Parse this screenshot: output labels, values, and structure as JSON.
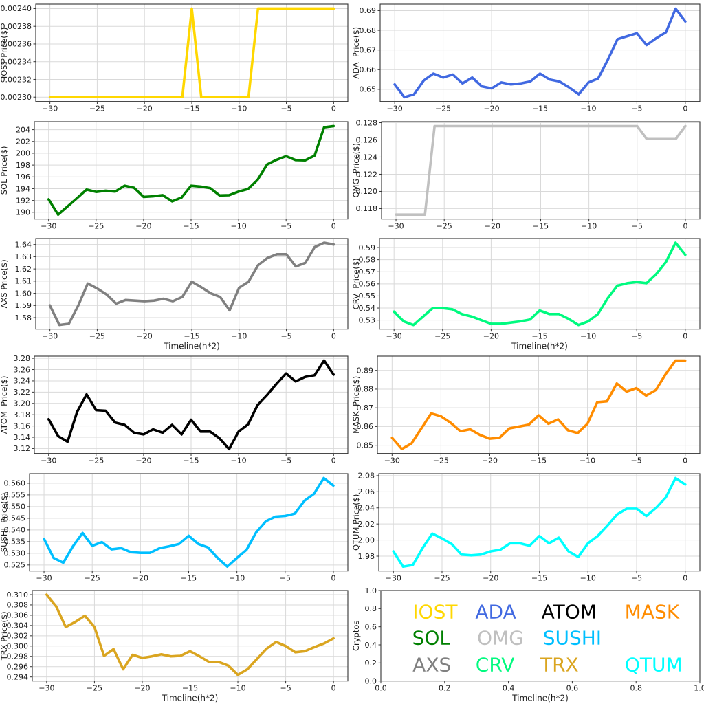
{
  "figure": {
    "background": "#ffffff",
    "grid_color": "#d9d9d9",
    "spine_color": "#333333",
    "tick_color": "#333333",
    "text_color": "#1a1a1a",
    "columns": 2,
    "rows": 6
  },
  "chart_data": [
    {
      "type": "line",
      "name": "IOST",
      "ylabel": "IOST Price($)",
      "xlabel": null,
      "color": "#FFD700",
      "x_start": -30,
      "x_step": 1,
      "xlim": [
        -31.5,
        1.5
      ],
      "ylim": [
        0.002295,
        0.002405
      ],
      "x_ticks": [
        -30,
        -25,
        -20,
        -15,
        -10,
        -5,
        0
      ],
      "x_tick_labels": [
        "−30",
        "−25",
        "−20",
        "−15",
        "−10",
        "−5",
        "0"
      ],
      "y_ticks": [
        0.0023,
        0.00232,
        0.00234,
        0.00236,
        0.00238,
        0.0024
      ],
      "y_tick_labels": [
        "0.00230",
        "0.00232",
        "0.00234",
        "0.00236",
        "0.00238",
        "0.00240"
      ],
      "values": [
        0.0023,
        0.0023,
        0.0023,
        0.0023,
        0.0023,
        0.0023,
        0.0023,
        0.0023,
        0.0023,
        0.0023,
        0.0023,
        0.0023,
        0.0023,
        0.0023,
        0.0023,
        0.0024,
        0.0023,
        0.0023,
        0.0023,
        0.0023,
        0.0023,
        0.0023,
        0.0024,
        0.0024,
        0.0024,
        0.0024,
        0.0024,
        0.0024,
        0.0024,
        0.0024,
        0.0024
      ]
    },
    {
      "type": "line",
      "name": "ADA",
      "ylabel": "ADA  Price($)",
      "xlabel": null,
      "color": "#4169E1",
      "x_start": -30,
      "x_step": 1,
      "xlim": [
        -31.5,
        1.5
      ],
      "ylim": [
        0.6438,
        0.6933
      ],
      "x_ticks": [
        -30,
        -25,
        -20,
        -15,
        -10,
        -5,
        0
      ],
      "x_tick_labels": [
        "−30",
        "−25",
        "−20",
        "−15",
        "−10",
        "−5",
        "0"
      ],
      "y_ticks": [
        0.65,
        0.66,
        0.67,
        0.68,
        0.69
      ],
      "y_tick_labels": [
        "0.65",
        "0.66",
        "0.67",
        "0.68",
        "0.69"
      ],
      "values": [
        0.6525,
        0.646,
        0.6475,
        0.6545,
        0.658,
        0.656,
        0.6575,
        0.653,
        0.656,
        0.6515,
        0.6505,
        0.6535,
        0.6525,
        0.653,
        0.654,
        0.658,
        0.655,
        0.654,
        0.651,
        0.6475,
        0.6535,
        0.6555,
        0.665,
        0.6755,
        0.677,
        0.6785,
        0.6725,
        0.676,
        0.679,
        0.691,
        0.6845
      ]
    },
    {
      "type": "line",
      "name": "SOL",
      "ylabel": "SOL Price($)",
      "xlabel": null,
      "color": "#008000",
      "x_start": -30,
      "x_step": 1,
      "xlim": [
        -31.5,
        1.5
      ],
      "ylim": [
        188.85,
        205.35
      ],
      "x_ticks": [
        -30,
        -25,
        -20,
        -15,
        -10,
        -5,
        0
      ],
      "x_tick_labels": [
        "−30",
        "−25",
        "−20",
        "−15",
        "−10",
        "−5",
        "0"
      ],
      "y_ticks": [
        190,
        192,
        194,
        196,
        198,
        200,
        202,
        204
      ],
      "y_tick_labels": [
        "190",
        "192",
        "194",
        "196",
        "198",
        "200",
        "202",
        "204"
      ],
      "values": [
        192.2,
        189.6,
        191.0,
        192.4,
        193.85,
        193.45,
        193.65,
        193.5,
        194.5,
        194.15,
        192.6,
        192.7,
        192.9,
        191.85,
        192.5,
        194.5,
        194.35,
        194.1,
        192.85,
        192.9,
        193.5,
        193.95,
        195.5,
        198.1,
        198.9,
        199.5,
        198.85,
        198.8,
        199.6,
        204.4,
        204.6
      ]
    },
    {
      "type": "line",
      "name": "OMG",
      "ylabel": "OMG  Price($)",
      "xlabel": null,
      "color": "#C0C0C0",
      "x_start": -30,
      "x_step": 1,
      "xlim": [
        -31.5,
        1.5
      ],
      "ylim": [
        0.11678,
        0.12812
      ],
      "x_ticks": [
        -30,
        -25,
        -20,
        -15,
        -10,
        -5,
        0
      ],
      "x_tick_labels": [
        "−30",
        "−25",
        "−20",
        "−15",
        "−10",
        "−5",
        "0"
      ],
      "y_ticks": [
        0.118,
        0.12,
        0.122,
        0.124,
        0.126,
        0.128
      ],
      "y_tick_labels": [
        "0.118",
        "0.120",
        "0.122",
        "0.124",
        "0.126",
        "0.128"
      ],
      "values": [
        0.1173,
        0.1173,
        0.1173,
        0.1173,
        0.1276,
        0.1276,
        0.1276,
        0.1276,
        0.1276,
        0.1276,
        0.1276,
        0.1276,
        0.1276,
        0.1276,
        0.1276,
        0.1276,
        0.1276,
        0.1276,
        0.1276,
        0.1276,
        0.1276,
        0.1276,
        0.1276,
        0.1276,
        0.1276,
        0.1276,
        0.1261,
        0.1261,
        0.1261,
        0.1261,
        0.1276
      ]
    },
    {
      "type": "line",
      "name": "AXS",
      "ylabel": "AXS Price($)",
      "xlabel": "Timeline(h*2)",
      "color": "#808080",
      "x_start": -30,
      "x_step": 1,
      "xlim": [
        -31.5,
        1.5
      ],
      "ylim": [
        1.5706,
        1.6449
      ],
      "x_ticks": [
        -30,
        -25,
        -20,
        -15,
        -10,
        -5,
        0
      ],
      "x_tick_labels": [
        "−30",
        "−25",
        "−20",
        "−15",
        "−10",
        "−5",
        "0"
      ],
      "y_ticks": [
        1.58,
        1.59,
        1.6,
        1.61,
        1.62,
        1.63,
        1.64
      ],
      "y_tick_labels": [
        "1.58",
        "1.59",
        "1.60",
        "1.61",
        "1.62",
        "1.63",
        "1.64"
      ],
      "values": [
        1.59,
        1.574,
        1.575,
        1.59,
        1.608,
        1.604,
        1.599,
        1.5915,
        1.5945,
        1.594,
        1.5935,
        1.594,
        1.5955,
        1.5935,
        1.597,
        1.6095,
        1.605,
        1.6,
        1.597,
        1.586,
        1.6045,
        1.6095,
        1.623,
        1.629,
        1.632,
        1.632,
        1.622,
        1.625,
        1.638,
        1.6415,
        1.64
      ]
    },
    {
      "type": "line",
      "name": "CRV",
      "ylabel": "CRV  Price($)",
      "xlabel": "Timeline(h*2)",
      "color": "#00FA7F",
      "x_start": -30,
      "x_step": 1,
      "xlim": [
        -31.5,
        1.5
      ],
      "ylim": [
        0.5226,
        0.5974
      ],
      "x_ticks": [
        -30,
        -25,
        -20,
        -15,
        -10,
        -5,
        0
      ],
      "x_tick_labels": [
        "−30",
        "−25",
        "−20",
        "−15",
        "−10",
        "−5",
        "0"
      ],
      "y_ticks": [
        0.53,
        0.54,
        0.55,
        0.56,
        0.57,
        0.58,
        0.59
      ],
      "y_tick_labels": [
        "0.53",
        "0.54",
        "0.55",
        "0.56",
        "0.57",
        "0.58",
        "0.59"
      ],
      "values": [
        0.537,
        0.529,
        0.526,
        0.533,
        0.54,
        0.54,
        0.539,
        0.535,
        0.533,
        0.53,
        0.527,
        0.527,
        0.528,
        0.529,
        0.5305,
        0.538,
        0.535,
        0.535,
        0.531,
        0.526,
        0.529,
        0.535,
        0.548,
        0.5585,
        0.5605,
        0.5615,
        0.5605,
        0.568,
        0.578,
        0.594,
        0.584
      ]
    },
    {
      "type": "line",
      "name": "ATOM",
      "ylabel": "ATOM  Price($)",
      "xlabel": null,
      "color": "#000000",
      "x_start": -30,
      "x_step": 1,
      "xlim": [
        -31.5,
        1.5
      ],
      "ylim": [
        3.1112,
        3.2838
      ],
      "x_ticks": [
        -30,
        -25,
        -20,
        -15,
        -10,
        -5,
        0
      ],
      "x_tick_labels": [
        "−30",
        "−25",
        "−20",
        "−15",
        "−10",
        "−5",
        "0"
      ],
      "y_ticks": [
        3.12,
        3.14,
        3.16,
        3.18,
        3.2,
        3.22,
        3.24,
        3.26,
        3.28
      ],
      "y_tick_labels": [
        "3.12",
        "3.14",
        "3.16",
        "3.18",
        "3.20",
        "3.22",
        "3.24",
        "3.26",
        "3.28"
      ],
      "values": [
        3.172,
        3.142,
        3.132,
        3.185,
        3.216,
        3.188,
        3.187,
        3.166,
        3.162,
        3.148,
        3.145,
        3.154,
        3.148,
        3.162,
        3.145,
        3.171,
        3.15,
        3.15,
        3.138,
        3.119,
        3.15,
        3.163,
        3.197,
        3.215,
        3.235,
        3.253,
        3.239,
        3.247,
        3.25,
        3.276,
        3.251
      ]
    },
    {
      "type": "line",
      "name": "MASK",
      "ylabel": "MASK  Price($)",
      "xlabel": null,
      "color": "#FF8C00",
      "x_start": -30,
      "x_step": 1,
      "xlim": [
        -31.5,
        1.5
      ],
      "ylim": [
        0.8456,
        0.8976
      ],
      "x_ticks": [
        -30,
        -25,
        -20,
        -15,
        -10,
        -5,
        0
      ],
      "x_tick_labels": [
        "−30",
        "−25",
        "−20",
        "−15",
        "−10",
        "−5",
        "0"
      ],
      "y_ticks": [
        0.85,
        0.86,
        0.87,
        0.88,
        0.89
      ],
      "y_tick_labels": [
        "0.85",
        "0.86",
        "0.87",
        "0.88",
        "0.89"
      ],
      "values": [
        0.854,
        0.848,
        0.851,
        0.859,
        0.867,
        0.8655,
        0.862,
        0.8575,
        0.8585,
        0.8555,
        0.8535,
        0.854,
        0.859,
        0.86,
        0.861,
        0.866,
        0.8615,
        0.8638,
        0.858,
        0.8565,
        0.8615,
        0.873,
        0.8735,
        0.883,
        0.8787,
        0.8805,
        0.8765,
        0.8795,
        0.888,
        0.8952,
        0.8952
      ]
    },
    {
      "type": "line",
      "name": "SUSHI",
      "ylabel": "SUSHI  Price($)",
      "xlabel": null,
      "color": "#00BFFF",
      "x_start": -30,
      "x_step": 1,
      "xlim": [
        -31.5,
        1.5
      ],
      "ylim": [
        0.5224,
        0.5641
      ],
      "x_ticks": [
        -30,
        -25,
        -20,
        -15,
        -10,
        -5,
        0
      ],
      "x_tick_labels": [
        "−30",
        "−25",
        "−20",
        "−15",
        "−10",
        "−5",
        "0"
      ],
      "y_ticks": [
        0.525,
        0.53,
        0.535,
        0.54,
        0.545,
        0.55,
        0.555,
        0.56
      ],
      "y_tick_labels": [
        "0.525",
        "0.530",
        "0.535",
        "0.540",
        "0.545",
        "0.550",
        "0.555",
        "0.560"
      ],
      "values": [
        0.5362,
        0.528,
        0.526,
        0.533,
        0.5387,
        0.5332,
        0.5348,
        0.5317,
        0.5322,
        0.5305,
        0.5302,
        0.5302,
        0.5322,
        0.533,
        0.534,
        0.5375,
        0.534,
        0.5325,
        0.528,
        0.5243,
        0.528,
        0.5315,
        0.539,
        0.5437,
        0.5457,
        0.546,
        0.547,
        0.5525,
        0.5555,
        0.5622,
        0.559
      ]
    },
    {
      "type": "line",
      "name": "QTUM",
      "ylabel": "QTUM Price($)",
      "xlabel": null,
      "color": "#00FFFF",
      "x_start": -30,
      "x_step": 1,
      "xlim": [
        -31.5,
        1.5
      ],
      "ylim": [
        1.9615,
        2.0825
      ],
      "x_ticks": [
        -30,
        -25,
        -20,
        -15,
        -10,
        -5,
        0
      ],
      "x_tick_labels": [
        "−30",
        "−25",
        "−20",
        "−15",
        "−10",
        "−5",
        "0"
      ],
      "y_ticks": [
        1.98,
        2.0,
        2.02,
        2.04,
        2.06,
        2.08
      ],
      "y_tick_labels": [
        "1.98",
        "2.00",
        "2.02",
        "2.04",
        "2.06",
        "2.08"
      ],
      "values": [
        1.986,
        1.967,
        1.969,
        1.99,
        2.008,
        2.002,
        1.995,
        1.982,
        1.981,
        1.982,
        1.986,
        1.988,
        1.996,
        1.996,
        1.993,
        2.005,
        1.996,
        2.003,
        1.986,
        1.979,
        1.996,
        2.005,
        2.018,
        2.032,
        2.039,
        2.039,
        2.03,
        2.04,
        2.053,
        2.077,
        2.069
      ]
    },
    {
      "type": "line",
      "name": "TRX",
      "ylabel": "TRX Price($)",
      "xlabel": "Timeline(h*2)",
      "color": "#DAA520",
      "x_start": -30,
      "x_step": 1,
      "xlim": [
        -31.5,
        1.5
      ],
      "ylim": [
        0.2932,
        0.3108
      ],
      "x_ticks": [
        -30,
        -25,
        -20,
        -15,
        -10,
        -5,
        0
      ],
      "x_tick_labels": [
        "−30",
        "−25",
        "−20",
        "−15",
        "−10",
        "−5",
        "0"
      ],
      "y_ticks": [
        0.294,
        0.296,
        0.298,
        0.3,
        0.302,
        0.304,
        0.306,
        0.308,
        0.31
      ],
      "y_tick_labels": [
        "0.294",
        "0.296",
        "0.298",
        "0.300",
        "0.302",
        "0.304",
        "0.306",
        "0.308",
        "0.310"
      ],
      "values": [
        0.31,
        0.3077,
        0.3037,
        0.3047,
        0.3059,
        0.3037,
        0.2981,
        0.2994,
        0.2955,
        0.2983,
        0.2977,
        0.298,
        0.2984,
        0.298,
        0.2981,
        0.299,
        0.298,
        0.2969,
        0.2969,
        0.2962,
        0.2944,
        0.2955,
        0.2975,
        0.2995,
        0.3008,
        0.3,
        0.2988,
        0.299,
        0.2998,
        0.3005,
        0.3015
      ]
    },
    {
      "type": "legend",
      "name": "Cryptos",
      "ylabel": "Cryptos",
      "xlabel": "Timeline(h*2)",
      "xlim": [
        0,
        1
      ],
      "ylim": [
        0,
        1
      ],
      "x_ticks": [
        0,
        0.2,
        0.4,
        0.6,
        0.8,
        1.0
      ],
      "x_tick_labels": [
        "0.0",
        "0.2",
        "0.4",
        "0.6",
        "0.8",
        "1.0"
      ],
      "y_ticks": [
        0,
        0.2,
        0.4,
        0.6,
        0.8,
        1.0
      ],
      "y_tick_labels": [
        "0.0",
        "0.2",
        "0.4",
        "0.6",
        "0.8",
        "1.0"
      ],
      "items": [
        {
          "label": "IOST",
          "color": "#FFD700",
          "x": 0.17,
          "y": 0.77
        },
        {
          "label": "ADA",
          "color": "#4169E1",
          "x": 0.36,
          "y": 0.77
        },
        {
          "label": "ATOM",
          "color": "#000000",
          "x": 0.59,
          "y": 0.77
        },
        {
          "label": "MASK",
          "color": "#FF8C00",
          "x": 0.85,
          "y": 0.77
        },
        {
          "label": "SOL",
          "color": "#008000",
          "x": 0.158,
          "y": 0.48
        },
        {
          "label": "OMG",
          "color": "#C0C0C0",
          "x": 0.375,
          "y": 0.48
        },
        {
          "label": "SUSHI",
          "color": "#00BFFF",
          "x": 0.6,
          "y": 0.48
        },
        {
          "label": "AXS",
          "color": "#808080",
          "x": 0.16,
          "y": 0.185
        },
        {
          "label": "CRV",
          "color": "#00FA7F",
          "x": 0.358,
          "y": 0.185
        },
        {
          "label": "TRX",
          "color": "#DAA520",
          "x": 0.56,
          "y": 0.185
        },
        {
          "label": "QTUM",
          "color": "#00FFFF",
          "x": 0.855,
          "y": 0.185
        }
      ]
    }
  ]
}
